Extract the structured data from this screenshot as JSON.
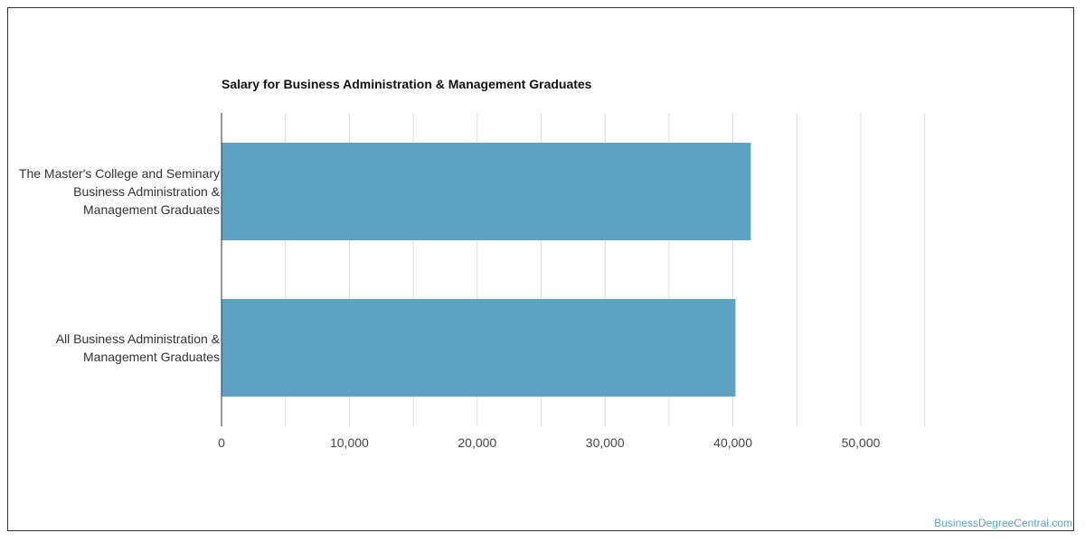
{
  "chart_data": {
    "type": "bar",
    "orientation": "horizontal",
    "title": "Salary for Business Administration & Management Graduates",
    "categories": [
      "The Master's College and Seminary Business Administration & Management Graduates",
      "All Business Administration & Management Graduates"
    ],
    "values": [
      41400,
      40200
    ],
    "xlim": [
      0,
      55000
    ],
    "xticks": [
      0,
      10000,
      20000,
      30000,
      40000,
      50000
    ],
    "xtick_labels": [
      "0",
      "10,000",
      "20,000",
      "30,000",
      "40,000",
      "50,000"
    ],
    "grid": true,
    "bar_color": "#5ba3c0"
  },
  "watermark": "BusinessDegreeCentral.com"
}
